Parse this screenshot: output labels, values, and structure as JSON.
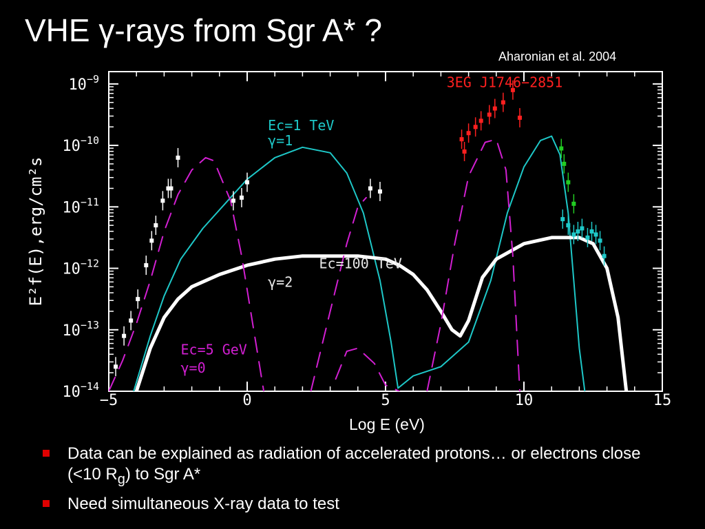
{
  "slide": {
    "title_prefix": "VHE ",
    "title_gamma": "γ",
    "title_suffix": "-rays from Sgr A* ?",
    "citation": "Aharonian et al. 2004",
    "bullets": [
      {
        "pre": "Data can be explained as radiation of accelerated protons… or electrons close (<10 R",
        "sub": "g",
        "post": ") to Sgr A*"
      },
      {
        "pre": "Need simultaneous X-ray data to test",
        "sub": "",
        "post": ""
      }
    ],
    "colors": {
      "bullet": "#e00000",
      "background": "#000000"
    }
  },
  "chart_data": {
    "type": "scatter",
    "xlabel": "Log E (eV)",
    "ylabel": "E²f(E),erg/cm²s",
    "xlim": [
      -5,
      15
    ],
    "ylim_log10": [
      -14,
      -8.8
    ],
    "x_ticks": [
      -5,
      0,
      5,
      10,
      15
    ],
    "y_ticks_exp": [
      -9,
      -10,
      -11,
      -12,
      -13,
      -14
    ],
    "y_tick_base": "10",
    "annotations": [
      {
        "text": "3EG J1746−2851",
        "x": 11.4,
        "y_log": -9.05,
        "color": "#ff2020"
      },
      {
        "text": "Ec=1 TeV",
        "x": 0.75,
        "y_log": -9.75,
        "color": "#1ec8c8"
      },
      {
        "text": "γ=1",
        "x": 0.75,
        "y_log": -10.0,
        "color": "#1ec8c8"
      },
      {
        "text": "Ec=100 TeV",
        "x": 2.6,
        "y_log": -12.0,
        "color": "#e8e8e8"
      },
      {
        "text": "γ=2",
        "x": 0.75,
        "y_log": -12.3,
        "color": "#e8e8e8"
      },
      {
        "text": "Ec=5 GeV",
        "x": -2.4,
        "y_log": -13.4,
        "color": "#d21fd2"
      },
      {
        "text": "γ=0",
        "x": -2.4,
        "y_log": -13.7,
        "color": "#d21fd2"
      }
    ],
    "series": [
      {
        "color": "#1ec8c8",
        "style": "solid",
        "x": [
          -4.1,
          -3.5,
          -3.0,
          -2.4,
          -1.6,
          -0.8,
          0.0,
          1.0,
          2.0,
          3.0,
          3.6,
          4.2,
          4.8,
          5.2,
          5.45,
          6.0,
          7.0,
          8.0,
          8.8,
          9.4,
          10.0,
          10.6,
          11.0,
          11.3,
          11.6,
          11.8,
          12.0,
          12.2
        ],
        "y_log": [
          -14.0,
          -13.1,
          -12.45,
          -11.85,
          -11.35,
          -10.95,
          -10.55,
          -10.2,
          -10.03,
          -10.12,
          -10.45,
          -11.1,
          -12.2,
          -13.2,
          -13.95,
          -13.75,
          -13.6,
          -13.2,
          -12.2,
          -11.1,
          -10.35,
          -9.92,
          -9.85,
          -10.15,
          -11.1,
          -12.2,
          -13.3,
          -14.0
        ]
      },
      {
        "color": "#ffffff",
        "style": "solid",
        "x": [
          -4.0,
          -3.5,
          -3.0,
          -2.5,
          -2.0,
          -1.0,
          0.0,
          1.0,
          2.0,
          3.0,
          4.0,
          5.0,
          5.5,
          6.0,
          6.5,
          7.0,
          7.4,
          7.7,
          8.0,
          8.5,
          9.0,
          10.0,
          11.0,
          12.0,
          12.5,
          13.0,
          13.4,
          13.7
        ],
        "y_log": [
          -14.0,
          -13.3,
          -12.8,
          -12.5,
          -12.3,
          -12.1,
          -11.95,
          -11.85,
          -11.8,
          -11.8,
          -11.8,
          -11.85,
          -11.95,
          -12.1,
          -12.35,
          -12.7,
          -13.0,
          -13.1,
          -12.85,
          -12.15,
          -11.85,
          -11.6,
          -11.5,
          -11.5,
          -11.6,
          -12.0,
          -12.8,
          -14.0
        ]
      },
      {
        "color": "#d21fd2",
        "style": "dashed",
        "x": [
          -5.0,
          -4.5,
          -4.0,
          -3.5,
          -3.0,
          -2.5,
          -2.0,
          -1.5,
          -1.2,
          -0.6,
          -0.2,
          0.2,
          0.6
        ],
        "y_log": [
          -14.0,
          -13.5,
          -12.9,
          -12.2,
          -11.4,
          -10.8,
          -10.4,
          -10.2,
          -10.25,
          -10.9,
          -11.8,
          -12.9,
          -14.0
        ]
      },
      {
        "color": "#d21fd2",
        "style": "dashed",
        "x": [
          2.3,
          3.0,
          3.6,
          4.0,
          4.3
        ],
        "y_log": [
          -14.0,
          -12.7,
          -11.6,
          -11.0,
          -10.85
        ]
      },
      {
        "color": "#d21fd2",
        "style": "dashed",
        "x": [
          3.2,
          3.6,
          4.0,
          4.6,
          5.0,
          5.5
        ],
        "y_log": [
          -13.8,
          -13.35,
          -13.3,
          -13.55,
          -13.9,
          -14.0
        ]
      },
      {
        "color": "#d21fd2",
        "style": "dashed",
        "x": [
          6.5,
          7.0,
          7.5,
          8.0,
          8.6,
          9.0,
          9.35,
          9.6,
          9.85
        ],
        "y_log": [
          -14.0,
          -12.9,
          -11.6,
          -10.5,
          -9.95,
          -9.9,
          -10.4,
          -11.8,
          -14.0
        ]
      }
    ],
    "points": [
      {
        "color": "#ffffff",
        "x": [
          -4.75,
          -4.45,
          -4.2,
          -3.95,
          -3.65,
          -3.45,
          -3.3,
          -3.05,
          -2.85,
          -2.75,
          -2.5
        ],
        "y_log": [
          -13.6,
          -13.1,
          -12.85,
          -12.5,
          -11.95,
          -11.55,
          -11.3,
          -10.9,
          -10.7,
          -10.7,
          -10.2
        ]
      },
      {
        "color": "#ffffff",
        "x": [
          -0.5,
          -0.2,
          0.0
        ],
        "y_log": [
          -10.9,
          -10.85,
          -10.6
        ]
      },
      {
        "color": "#ffffff",
        "x": [
          4.45,
          4.8
        ],
        "y_log": [
          -10.7,
          -10.75
        ]
      },
      {
        "color": "#ff2020",
        "x": [
          7.75,
          7.85,
          8.0,
          8.25,
          8.45,
          8.75,
          8.95,
          9.25,
          9.6,
          9.85
        ],
        "y_log": [
          -9.9,
          -10.1,
          -9.8,
          -9.7,
          -9.6,
          -9.5,
          -9.4,
          -9.3,
          -9.1,
          -9.55
        ]
      },
      {
        "color": "#1ec8c8",
        "x": [
          11.4,
          11.6,
          11.8,
          11.95,
          12.1,
          12.3,
          12.45,
          12.6,
          12.75,
          12.9
        ],
        "y_log": [
          -11.2,
          -11.3,
          -11.45,
          -11.4,
          -11.35,
          -11.5,
          -11.4,
          -11.45,
          -11.55,
          -11.8
        ]
      },
      {
        "color": "#22cc22",
        "x": [
          11.35,
          11.45,
          11.6,
          11.8
        ],
        "y_log": [
          -10.05,
          -10.3,
          -10.6,
          -10.95
        ]
      }
    ]
  }
}
